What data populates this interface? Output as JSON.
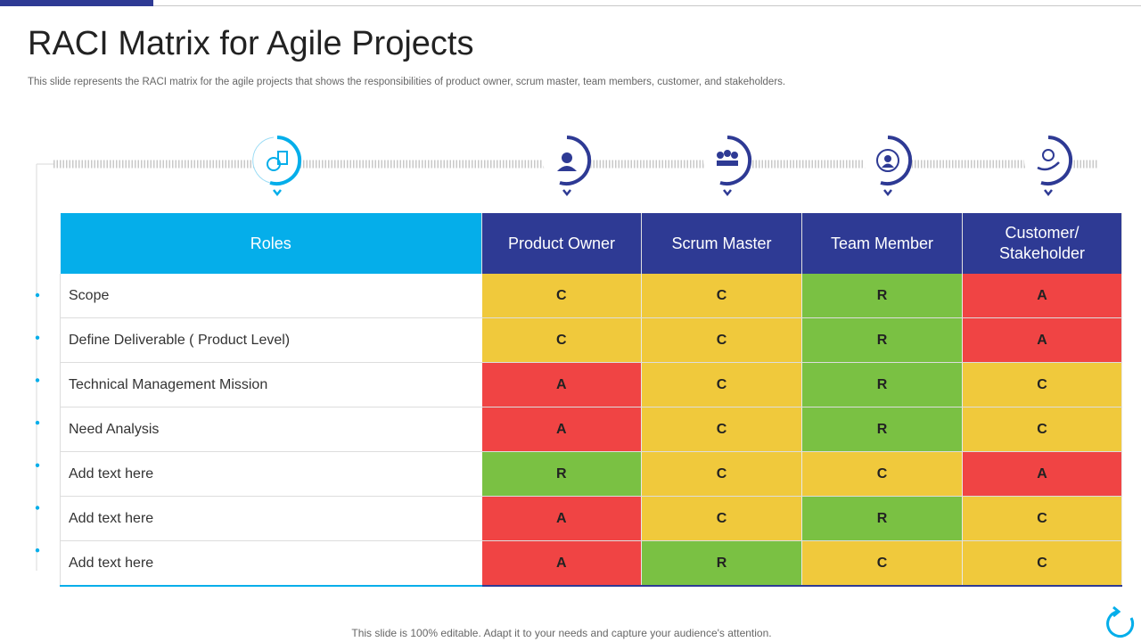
{
  "title": "RACI Matrix for Agile Projects",
  "subtitle": "This slide represents the RACI matrix for the agile projects that shows the responsibilities of product owner, scrum master, team members, customer, and stakeholders.",
  "table": {
    "header": [
      "Roles",
      "Product Owner",
      "Scrum Master",
      "Team Member",
      "Customer/ Stakeholder"
    ],
    "rows": [
      [
        "Scope",
        "C",
        "C",
        "R",
        "A"
      ],
      [
        "Define Deliverable ( Product Level)",
        "C",
        "C",
        "R",
        "A"
      ],
      [
        "Technical Management Mission",
        "A",
        "C",
        "R",
        "C"
      ],
      [
        "Need Analysis",
        "A",
        "C",
        "R",
        "C"
      ],
      [
        "Add text here",
        "R",
        "C",
        "C",
        "A"
      ],
      [
        "Add text here",
        "A",
        "C",
        "R",
        "C"
      ],
      [
        "Add text here",
        "A",
        "R",
        "C",
        "C"
      ]
    ],
    "cell_colors": {
      "R": "#7ac143",
      "C": "#f0c93c",
      "A": "#f04444"
    }
  },
  "footer": "This slide is 100% editable. Adapt it to your needs and capture your audience's attention."
}
